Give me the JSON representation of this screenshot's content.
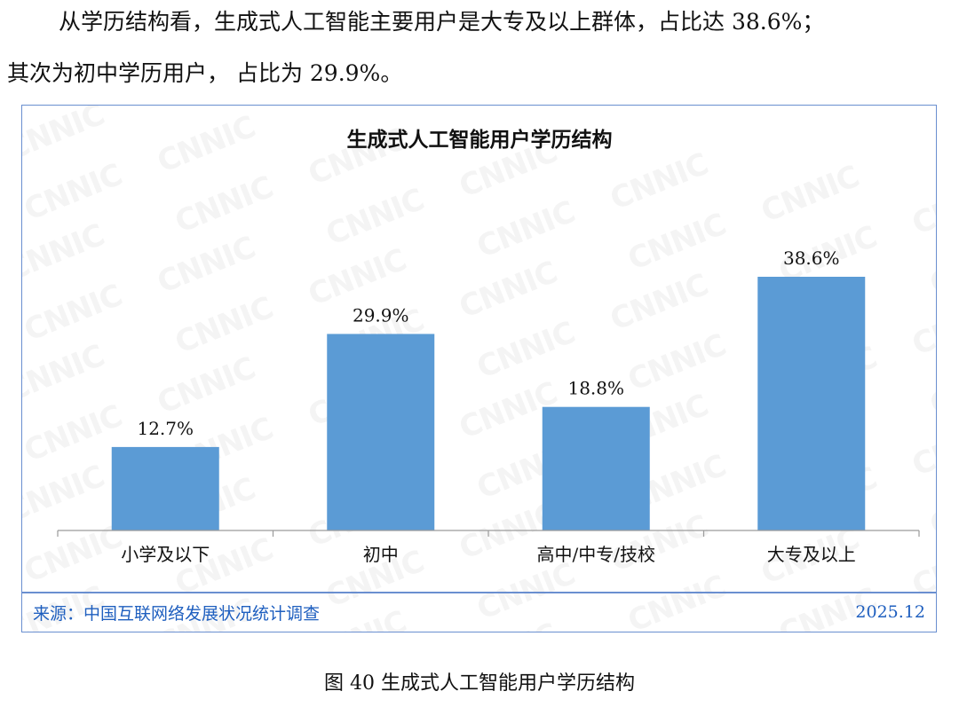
{
  "text": {
    "paragraph1": "从学历结构看，生成式人工智能主要用户是大专及以上群体，占比达 38.6%；",
    "paragraph2": "其次为初中学历用户， 占比为 29.9%。"
  },
  "figure": {
    "watermark_text": "CNNIC",
    "source": "来源：中国互联网络发展状况统计调查",
    "date": "2025.12",
    "caption": "图  40    生成式人工智能用户学历结构"
  },
  "colors": {
    "bar": "#5b9bd5",
    "frame": "#6a8fd0",
    "source_text": "#1f5fbf"
  },
  "chart_data": {
    "type": "bar",
    "title": "生成式人工智能用户学历结构",
    "categories": [
      "小学及以下",
      "初中",
      "高中/中专/技校",
      "大专及以上"
    ],
    "values": [
      12.7,
      29.9,
      18.8,
      38.6
    ],
    "data_labels": [
      "12.7%",
      "29.9%",
      "18.8%",
      "38.6%"
    ],
    "unit": "%",
    "ylim": [
      0,
      40
    ],
    "grid": false,
    "legend": "none"
  }
}
